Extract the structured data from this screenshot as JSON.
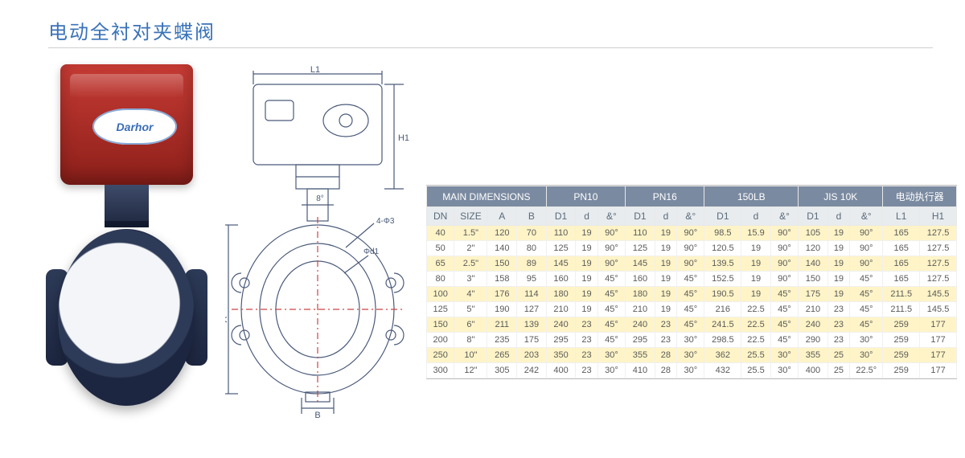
{
  "title": "电动全衬对夹蝶阀",
  "brand": "Darhor",
  "colors": {
    "title": "#3a73b8",
    "header_bg": "#7a8aa0",
    "header_fg": "#ffffff",
    "subheader_bg": "#e8ecef",
    "subheader_fg": "#5a6a7a",
    "row_highlight": "#fff4c7",
    "row_plain": "#ffffff",
    "cell_border": "#f0f0f0",
    "actuator": "#c63b34",
    "valve_body": "#2d3b58",
    "drawing_stroke": "#4a5a7a"
  },
  "table": {
    "group_headers": [
      {
        "label": "MAIN  DIMENSIONS",
        "span": 4
      },
      {
        "label": "PN10",
        "span": 3
      },
      {
        "label": "PN16",
        "span": 3
      },
      {
        "label": "150LB",
        "span": 3
      },
      {
        "label": "JIS 10K",
        "span": 3
      },
      {
        "label": "电动执行器",
        "span": 2
      }
    ],
    "sub_headers": [
      "DN",
      "SIZE",
      "A",
      "B",
      "D1",
      "d",
      "&°",
      "D1",
      "d",
      "&°",
      "D1",
      "d",
      "&°",
      "D1",
      "d",
      "&°",
      "L1",
      "H1"
    ],
    "rows": [
      {
        "hl": true,
        "cells": [
          "40",
          "1.5\"",
          "120",
          "70",
          "110",
          "19",
          "90°",
          "110",
          "19",
          "90°",
          "98.5",
          "15.9",
          "90°",
          "105",
          "19",
          "90°",
          "165",
          "127.5"
        ]
      },
      {
        "hl": false,
        "cells": [
          "50",
          "2\"",
          "140",
          "80",
          "125",
          "19",
          "90°",
          "125",
          "19",
          "90°",
          "120.5",
          "19",
          "90°",
          "120",
          "19",
          "90°",
          "165",
          "127.5"
        ]
      },
      {
        "hl": true,
        "cells": [
          "65",
          "2.5\"",
          "150",
          "89",
          "145",
          "19",
          "90°",
          "145",
          "19",
          "90°",
          "139.5",
          "19",
          "90°",
          "140",
          "19",
          "90°",
          "165",
          "127.5"
        ]
      },
      {
        "hl": false,
        "cells": [
          "80",
          "3\"",
          "158",
          "95",
          "160",
          "19",
          "45°",
          "160",
          "19",
          "45°",
          "152.5",
          "19",
          "90°",
          "150",
          "19",
          "45°",
          "165",
          "127.5"
        ]
      },
      {
        "hl": true,
        "cells": [
          "100",
          "4\"",
          "176",
          "114",
          "180",
          "19",
          "45°",
          "180",
          "19",
          "45°",
          "190.5",
          "19",
          "45°",
          "175",
          "19",
          "45°",
          "211.5",
          "145.5"
        ]
      },
      {
        "hl": false,
        "cells": [
          "125",
          "5\"",
          "190",
          "127",
          "210",
          "19",
          "45°",
          "210",
          "19",
          "45°",
          "216",
          "22.5",
          "45°",
          "210",
          "23",
          "45°",
          "211.5",
          "145.5"
        ]
      },
      {
        "hl": true,
        "cells": [
          "150",
          "6\"",
          "211",
          "139",
          "240",
          "23",
          "45°",
          "240",
          "23",
          "45°",
          "241.5",
          "22.5",
          "45°",
          "240",
          "23",
          "45°",
          "259",
          "177"
        ]
      },
      {
        "hl": false,
        "cells": [
          "200",
          "8\"",
          "235",
          "175",
          "295",
          "23",
          "45°",
          "295",
          "23",
          "30°",
          "298.5",
          "22.5",
          "45°",
          "290",
          "23",
          "30°",
          "259",
          "177"
        ]
      },
      {
        "hl": true,
        "cells": [
          "250",
          "10\"",
          "265",
          "203",
          "350",
          "23",
          "30°",
          "355",
          "28",
          "30°",
          "362",
          "25.5",
          "30°",
          "355",
          "25",
          "30°",
          "259",
          "177"
        ]
      },
      {
        "hl": false,
        "cells": [
          "300",
          "12\"",
          "305",
          "242",
          "400",
          "23",
          "30°",
          "410",
          "28",
          "30°",
          "432",
          "25.5",
          "30°",
          "400",
          "25",
          "22.5°",
          "259",
          "177"
        ]
      }
    ]
  },
  "drawing_labels": {
    "L1": "L1",
    "H1": "H1",
    "A": "A",
    "B": "B",
    "d1": "Φd1",
    "d3": "4-Φ3"
  }
}
